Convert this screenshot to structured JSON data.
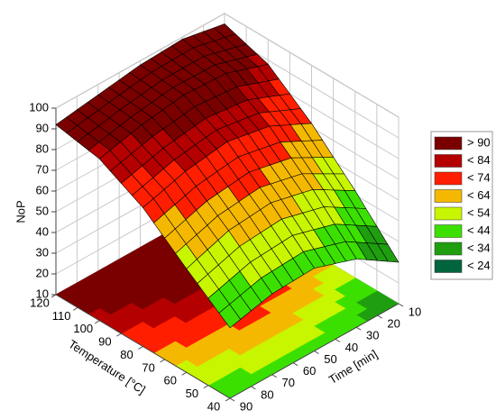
{
  "chart_data": {
    "type": "surface3d",
    "zlabel": "NoP",
    "xlabel": "Temperature [°C]",
    "ylabel": "Time [min]",
    "x": [
      40,
      60,
      80,
      100,
      120
    ],
    "y": [
      10,
      30,
      50,
      70,
      90
    ],
    "z": [
      [
        30,
        43,
        50,
        49,
        44
      ],
      [
        52,
        64,
        69,
        67,
        60
      ],
      [
        72,
        82,
        86,
        83,
        77
      ],
      [
        88,
        95,
        96,
        93,
        88
      ],
      [
        95,
        99,
        98,
        95,
        92
      ]
    ],
    "xlim": [
      40,
      120
    ],
    "xticks": [
      40,
      50,
      60,
      70,
      80,
      90,
      100,
      110,
      120
    ],
    "ylim": [
      10,
      90
    ],
    "yticks": [
      10,
      20,
      30,
      40,
      50,
      60,
      70,
      80,
      90
    ],
    "zlim": [
      10,
      100
    ],
    "zticks": [
      10,
      20,
      30,
      40,
      50,
      60,
      70,
      80,
      90,
      100
    ],
    "grid": true,
    "edgecolor": "#000000",
    "legend": {
      "position": "right",
      "items": [
        {
          "value": 90,
          "label": "> 90",
          "color": "#7a0000"
        },
        {
          "value": 84,
          "label": "< 84",
          "color": "#b40000"
        },
        {
          "value": 74,
          "label": "< 74",
          "color": "#ff1e00"
        },
        {
          "value": 64,
          "label": "< 64",
          "color": "#f5b800"
        },
        {
          "value": 54,
          "label": "< 54",
          "color": "#c8f500"
        },
        {
          "value": 44,
          "label": "< 44",
          "color": "#3ce000"
        },
        {
          "value": 34,
          "label": "< 34",
          "color": "#1f9e10"
        },
        {
          "value": 24,
          "label": "< 24",
          "color": "#00643c"
        }
      ]
    }
  }
}
